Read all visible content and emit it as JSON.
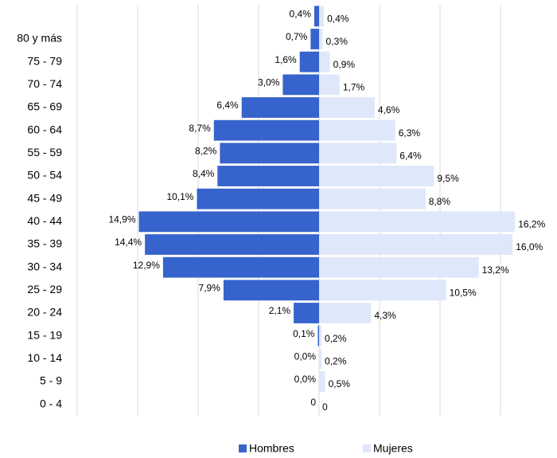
{
  "chart_data": {
    "type": "pyramid",
    "categories": [
      null,
      "80 y más",
      "75 - 79",
      "70 - 74",
      "65 - 69",
      "60 - 64",
      "55 - 59",
      "50 - 54",
      "45 - 49",
      "40 - 44",
      "35 - 39",
      "30 - 34",
      "25 - 29",
      "20 - 24",
      "15 - 19",
      "10 - 14",
      "5 - 9",
      "0 - 4"
    ],
    "series": [
      {
        "name": "Hombres",
        "color": "#3663cc",
        "values": [
          0.4,
          0.7,
          1.6,
          3.0,
          6.4,
          8.7,
          8.2,
          8.4,
          10.1,
          14.9,
          14.4,
          12.9,
          7.9,
          2.1,
          0.1,
          0.0,
          0.0,
          0
        ],
        "value_labels": [
          "0,4%",
          "0,7%",
          "1,6%",
          "3,0%",
          "6,4%",
          "8,7%",
          "8,2%",
          "8,4%",
          "10,1%",
          "14,9%",
          "14,4%",
          "12,9%",
          "7,9%",
          "2,1%",
          "0,1%",
          "0,0%",
          "0,0%",
          "0"
        ]
      },
      {
        "name": "Mujeres",
        "color": "#dfe8fa",
        "values": [
          0.4,
          0.3,
          0.9,
          1.7,
          4.6,
          6.3,
          6.4,
          9.5,
          8.8,
          16.2,
          16.0,
          13.2,
          10.5,
          4.3,
          0.2,
          0.2,
          0.5,
          0
        ],
        "value_labels": [
          "0,4%",
          "0,3%",
          "0,9%",
          "1,7%",
          "4,6%",
          "6,3%",
          "6,4%",
          "9,5%",
          "8,8%",
          "16,2%",
          "16,0%",
          "13,2%",
          "10,5%",
          "4,3%",
          "0,2%",
          "0,2%",
          "0,5%",
          "0"
        ]
      }
    ],
    "xlim": [
      -20,
      20
    ],
    "xticks": [
      -20,
      -15,
      -10,
      -5,
      0,
      5,
      10,
      15
    ],
    "grid": true,
    "legend": "bottom"
  }
}
